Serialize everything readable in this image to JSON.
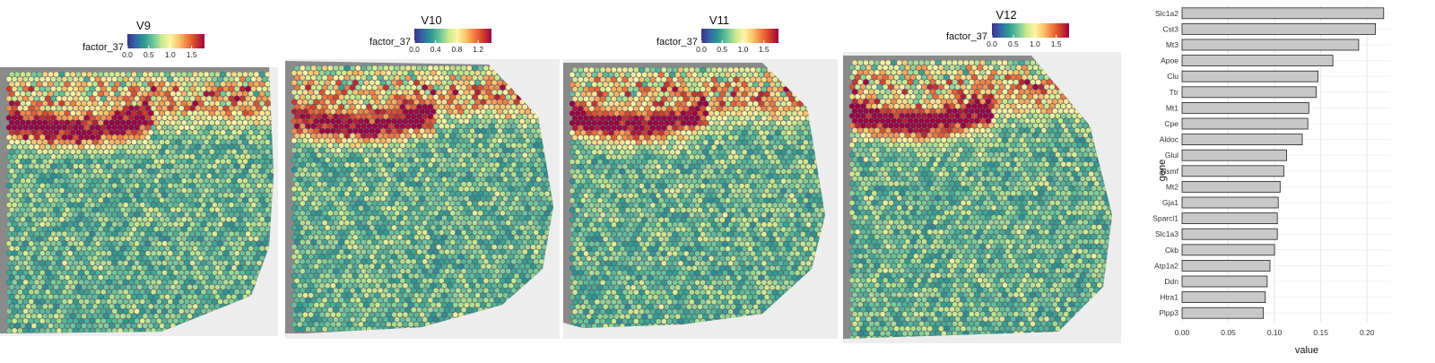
{
  "panels": [
    {
      "title": "V9",
      "legend": {
        "name": "factor_37",
        "ticks": [
          "0.0",
          "0.5",
          "1.0",
          "1.5"
        ],
        "min": 0,
        "max": 1.8
      }
    },
    {
      "title": "V10",
      "legend": {
        "name": "factor_37",
        "ticks": [
          "0.0",
          "0.4",
          "0.8",
          "1.2"
        ],
        "min": 0,
        "max": 1.45
      }
    },
    {
      "title": "V11",
      "legend": {
        "name": "factor_37",
        "ticks": [
          "0.0",
          "0.5",
          "1.0",
          "1.5"
        ],
        "min": 0,
        "max": 1.85
      }
    },
    {
      "title": "V12",
      "legend": {
        "name": "factor_37",
        "ticks": [
          "0.0",
          "0.5",
          "1.0",
          "1.5"
        ],
        "min": 0,
        "max": 1.8
      }
    }
  ],
  "colors": {
    "palette": [
      "#3d2f8c",
      "#3268a8",
      "#2f9b8f",
      "#6cc49c",
      "#c9e98e",
      "#fdf5a6",
      "#fdc36b",
      "#f47a3f",
      "#d13e2a",
      "#9e0142"
    ],
    "bar_fill": "#c8c8c8",
    "bar_stroke": "#222222",
    "grid": "#e6e6e6",
    "tissue_bg": "#8a8a8a"
  },
  "chart_data": [
    {
      "type": "heatmap",
      "description_type": "spatial",
      "panels": [
        "V9",
        "V10",
        "V11",
        "V12"
      ],
      "legend_title": "factor_37"
    },
    {
      "type": "bar",
      "orientation": "horizontal",
      "categories": [
        "Slc1a2",
        "Cst3",
        "Mt3",
        "Apoe",
        "Clu",
        "Ttr",
        "Mt1",
        "Cpe",
        "Aldoc",
        "Glul",
        "Nsmf",
        "Mt2",
        "Gja1",
        "Sparcl1",
        "Slc1a3",
        "Ckb",
        "Atp1a2",
        "Ddn",
        "Htra1",
        "Plpp3"
      ],
      "values": [
        0.218,
        0.209,
        0.191,
        0.163,
        0.147,
        0.145,
        0.137,
        0.136,
        0.13,
        0.113,
        0.11,
        0.106,
        0.104,
        0.103,
        0.103,
        0.1,
        0.095,
        0.092,
        0.09,
        0.088
      ],
      "xlabel": "value",
      "ylabel": "gene",
      "xlim": [
        0,
        0.225
      ],
      "xticks": [
        "0.00",
        "0.05",
        "0.10",
        "0.15",
        "0.20"
      ]
    }
  ]
}
